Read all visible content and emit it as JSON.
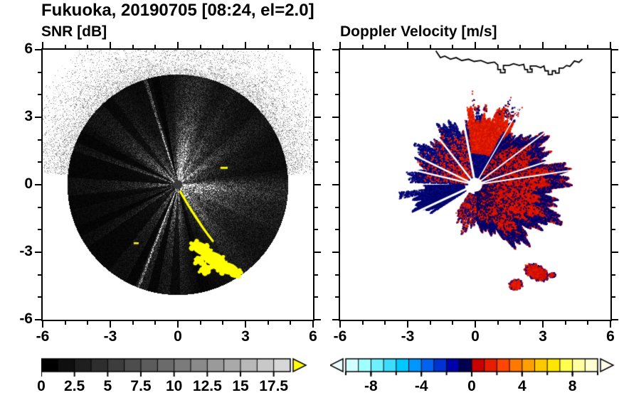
{
  "title": "Fukuoka, 20190705 [08:24, el=2.0]",
  "coastline": [
    [
      -1.75,
      5.95
    ],
    [
      -1.55,
      5.65
    ],
    [
      -1.35,
      5.72
    ],
    [
      -1.1,
      5.58
    ],
    [
      -0.85,
      5.65
    ],
    [
      -0.6,
      5.52
    ],
    [
      -0.3,
      5.58
    ],
    [
      -0.05,
      5.48
    ],
    [
      0.25,
      5.52
    ],
    [
      0.55,
      5.4
    ],
    [
      0.85,
      5.45
    ],
    [
      1.0,
      5.32
    ],
    [
      1.0,
      5.12
    ],
    [
      1.12,
      5.12
    ],
    [
      1.12,
      4.98
    ],
    [
      1.32,
      4.98
    ],
    [
      1.32,
      5.12
    ],
    [
      1.25,
      5.12
    ],
    [
      1.25,
      5.3
    ],
    [
      1.5,
      5.3
    ],
    [
      1.7,
      5.38
    ],
    [
      1.95,
      5.3
    ],
    [
      2.15,
      5.35
    ],
    [
      2.2,
      5.12
    ],
    [
      2.32,
      5.12
    ],
    [
      2.32,
      5.0
    ],
    [
      2.52,
      5.0
    ],
    [
      2.52,
      5.14
    ],
    [
      2.44,
      5.14
    ],
    [
      2.44,
      5.28
    ],
    [
      2.7,
      5.28
    ],
    [
      2.9,
      5.2
    ],
    [
      3.05,
      5.28
    ],
    [
      3.1,
      5.06
    ],
    [
      3.24,
      5.06
    ],
    [
      3.24,
      4.9
    ],
    [
      3.42,
      4.9
    ],
    [
      3.42,
      5.06
    ],
    [
      3.56,
      5.06
    ],
    [
      3.56,
      4.96
    ],
    [
      3.72,
      4.96
    ],
    [
      3.72,
      5.18
    ],
    [
      3.9,
      5.18
    ],
    [
      4.05,
      5.3
    ],
    [
      4.2,
      5.26
    ],
    [
      4.4,
      5.5
    ],
    [
      4.6,
      5.44
    ],
    [
      4.75,
      5.58
    ]
  ],
  "chart_data": [
    {
      "type": "heatmap",
      "title": "SNR [dB]",
      "xlabel": "",
      "ylabel": "",
      "xlim": [
        -6,
        6
      ],
      "ylim": [
        -6,
        6
      ],
      "xticks": [
        -6,
        -3,
        0,
        3,
        6
      ],
      "xtick_labels": [
        "-6",
        "-3",
        "0",
        "3",
        "6"
      ],
      "yticks": [
        6,
        3,
        0,
        -3,
        -6
      ],
      "ytick_labels": [
        "6",
        "3",
        "0",
        "-3",
        "-6"
      ],
      "minor_tick_step": 1,
      "radar": {
        "max_range": 4.9,
        "noise_seed": 20190705,
        "center_dot_radius": 0.2,
        "center_dot_color": "#383838",
        "sectors": [
          {
            "az": [
              148,
              232
            ],
            "f": 0.72
          },
          {
            "az": [
              100,
              104
            ],
            "f": 0.05
          },
          {
            "az": [
              127,
              133
            ],
            "f": 0.3
          },
          {
            "az": [
              151,
              157
            ],
            "f": 0.2
          },
          {
            "az": [
              162,
              176
            ],
            "f": 0.12
          },
          {
            "az": [
              186,
              193
            ],
            "f": 0.25
          },
          {
            "az": [
              203,
              208
            ],
            "f": 0.08
          },
          {
            "az": [
              215,
              231
            ],
            "f": 0.2
          },
          {
            "az": [
              242,
              247
            ],
            "f": 0.06
          },
          {
            "az": [
              254,
              259
            ],
            "f": 0.1
          },
          {
            "az": [
              266,
              271
            ],
            "f": 0.25
          },
          {
            "az": [
              282,
              287
            ],
            "f": 0.08
          },
          {
            "az": [
              58,
              92
            ],
            "f": 1.55
          },
          {
            "az": [
              10,
              42
            ],
            "f": 1.3
          },
          {
            "az": [
              335,
              368
            ],
            "f": 1.5
          },
          {
            "az": [
              296,
              326
            ],
            "f": 1.3
          },
          {
            "az": [
              106.5,
              108
            ],
            "f": 7
          },
          {
            "az": [
              284.5,
              286
            ],
            "f": 6
          },
          {
            "az": [
              248.5,
              249.5
            ],
            "f": 5
          }
        ],
        "outer_speckle": {
          "az": [
            5,
            175
          ],
          "r_max": 7.4,
          "falloff": 1.15,
          "density": 0.5
        },
        "clutter_color": "#ffff00",
        "clutter_line": [
          [
            0.1,
            -0.3
          ],
          [
            0.28,
            -0.6
          ],
          [
            0.45,
            -0.9
          ],
          [
            0.63,
            -1.18
          ],
          [
            0.84,
            -1.5
          ],
          [
            1.07,
            -1.85
          ],
          [
            1.32,
            -2.2
          ],
          [
            1.55,
            -2.5
          ]
        ],
        "clutter_blobs": [
          {
            "cx": 1.05,
            "cy": -2.85,
            "rx": 0.5,
            "ry": 0.26,
            "rot": -0.5
          },
          {
            "cx": 1.6,
            "cy": -3.3,
            "rx": 0.55,
            "ry": 0.3,
            "rot": -0.4
          },
          {
            "cx": 2.2,
            "cy": -3.72,
            "rx": 0.5,
            "ry": 0.26,
            "rot": -0.25
          },
          {
            "cx": 1.22,
            "cy": -3.75,
            "rx": 0.3,
            "ry": 0.17,
            "rot": 0.3
          },
          {
            "cx": 0.95,
            "cy": -3.4,
            "rx": 0.22,
            "ry": 0.13,
            "rot": 0
          },
          {
            "cx": 2.6,
            "cy": -3.9,
            "rx": 0.22,
            "ry": 0.14,
            "rot": -0.2
          }
        ],
        "clutter_dashes": [
          [
            2.05,
            0.75,
            0.32,
            0.09
          ],
          [
            -1.85,
            -2.6,
            0.22,
            0.08
          ]
        ],
        "coastline_color": "#ffffff"
      },
      "colorbar": {
        "min": 0,
        "max": 18.75,
        "segment_colors": [
          "#000000",
          "#0f0f0f",
          "#1f1f1f",
          "#2e2e2e",
          "#3d3d3d",
          "#4d4d4d",
          "#5c5c5c",
          "#6b6b6b",
          "#7b7b7b",
          "#8a8a8a",
          "#9a9a9a",
          "#a9a9a9",
          "#b8b8b8",
          "#c8c8c8",
          "#d7d7d7"
        ],
        "over_arrow_color": "#ffff00",
        "tick_values": [
          0,
          2.5,
          5,
          7.5,
          10,
          12.5,
          15,
          17.5
        ],
        "tick_labels": [
          "0",
          "2.5",
          "5",
          "7.5",
          "10",
          "12.5",
          "15",
          "17.5"
        ]
      }
    },
    {
      "type": "scatter",
      "title": "Doppler Velocity [m/s]",
      "xlabel": "",
      "ylabel": "",
      "xlim": [
        -6,
        6
      ],
      "ylim": [
        -6,
        6
      ],
      "xticks": [
        -6,
        -3,
        0,
        3,
        6
      ],
      "xtick_labels": [
        "-6",
        "-3",
        "0",
        "3",
        "6"
      ],
      "yticks": [
        6,
        3,
        0,
        -3,
        -6
      ],
      "ytick_labels": [],
      "minor_tick_step": 1,
      "radar": {
        "center_hole_radius": 0.31,
        "coastline_color": "#000000",
        "regions": [
          {
            "name": "nw-blue-fan",
            "az": [
              57,
              178
            ],
            "r": [
              0.33,
              3.25
            ],
            "n": 13000,
            "rExp": 1.0,
            "edgeRag": 0.3,
            "size": 2,
            "colors": [
              "#000060",
              "#00006e",
              "#0a0a82",
              "#141482"
            ],
            "nzSeed": 1.7
          },
          {
            "name": "nne-red-speckle",
            "az": [
              52,
              96
            ],
            "r": [
              1.4,
              3.65
            ],
            "n": 4000,
            "rExp": 0.8,
            "edgeRag": 0.28,
            "size": 2,
            "colors": [
              "#dc1400",
              "#c81400",
              "#f02800"
            ],
            "nzSeed": 2.9
          },
          {
            "name": "ne-blue-mix",
            "az": [
              30,
              62
            ],
            "r": [
              0.5,
              3.3
            ],
            "n": 2200,
            "rExp": 0.9,
            "edgeRag": 0.3,
            "size": 2,
            "colors": [
              "#000060",
              "#0a0a82"
            ],
            "nzSeed": 0.8
          },
          {
            "name": "nw-red-sparse",
            "az": [
              96,
              176
            ],
            "r": [
              0.4,
              3.0
            ],
            "n": 650,
            "rExp": 1.0,
            "edgeRag": 0.3,
            "size": 2,
            "colors": [
              "#dc1400",
              "#f02800"
            ],
            "nzSeed": 1.1
          },
          {
            "name": "n-outliers",
            "az": [
              58,
              92
            ],
            "r": [
              3.3,
              4.35
            ],
            "n": 260,
            "rExp": 1.4,
            "edgeRag": 0.4,
            "size": 2,
            "colors": [
              "#dc1400",
              "#000060"
            ],
            "nzSeed": 3.3
          },
          {
            "name": "w-blue-blob",
            "az": [
              181,
              213
            ],
            "r": [
              0.5,
              3.05
            ],
            "n": 6500,
            "rExp": 0.95,
            "edgeRag": 0.35,
            "size": 2,
            "colors": [
              "#000060",
              "#00006e",
              "#0a0a82"
            ],
            "nzSeed": 2.2
          },
          {
            "name": "w-blue-spike",
            "az": [
              185.5,
              190.5
            ],
            "r": [
              0.5,
              3.55
            ],
            "n": 520,
            "rExp": 1.0,
            "edgeRag": 0.08,
            "size": 2,
            "colors": [
              "#000060",
              "#0a0a82"
            ],
            "nzSeed": 0.4
          },
          {
            "name": "e-red-fan",
            "az": [
              272,
              415
            ],
            "r": [
              0.33,
              4.45
            ],
            "n": 36000,
            "rExp": 1.0,
            "edgeRag": 0.3,
            "size": 2,
            "colors": [
              "#dc1400",
              "#d21000",
              "#e61e00",
              "#c80a00"
            ],
            "nzSeed": 5.1,
            "rmax_profile": [
              [
                272,
                1.7
              ],
              [
                283,
                2.5
              ],
              [
                295,
                3.1
              ],
              [
                310,
                3.7
              ],
              [
                330,
                4.15
              ],
              [
                350,
                4.4
              ],
              [
                372,
                4.45
              ],
              [
                390,
                4.1
              ],
              [
                403,
                3.6
              ],
              [
                415,
                3.1
              ]
            ]
          },
          {
            "name": "e-fan-blue-fringe",
            "az": [
              272,
              415
            ],
            "r": [
              0.33,
              4.45
            ],
            "n": 2600,
            "rExp": 1.0,
            "edgeRag": 0.3,
            "size": 2,
            "colors": [
              "#000060",
              "#0a0a82"
            ],
            "nzSeed": 5.1,
            "fringe": 0.8,
            "rmax_profile": [
              [
                272,
                1.7
              ],
              [
                283,
                2.5
              ],
              [
                295,
                3.1
              ],
              [
                310,
                3.7
              ],
              [
                330,
                4.15
              ],
              [
                350,
                4.4
              ],
              [
                372,
                4.45
              ],
              [
                390,
                4.1
              ],
              [
                403,
                3.6
              ],
              [
                415,
                3.1
              ]
            ]
          },
          {
            "name": "e-fan-blue-mix",
            "az": [
              272,
              415
            ],
            "r": [
              0.33,
              4.2
            ],
            "n": 1300,
            "rExp": 1.0,
            "edgeRag": 0.32,
            "size": 2,
            "colors": [
              "#000060"
            ],
            "nzSeed": 5.1,
            "rmax_profile": [
              [
                272,
                1.6
              ],
              [
                283,
                2.4
              ],
              [
                295,
                3.0
              ],
              [
                310,
                3.6
              ],
              [
                330,
                4.0
              ],
              [
                350,
                4.3
              ],
              [
                372,
                4.3
              ],
              [
                390,
                4.0
              ],
              [
                403,
                3.5
              ],
              [
                415,
                3.0
              ]
            ]
          },
          {
            "name": "s-sparse",
            "az": [
              236,
              272
            ],
            "r": [
              0.45,
              2.3
            ],
            "n": 1400,
            "rExp": 0.95,
            "edgeRag": 0.4,
            "size": 2,
            "colors": [
              "#000060",
              "#dc1400",
              "#0a0a82",
              "#e61e00"
            ],
            "nzSeed": 4.4
          }
        ],
        "blobs": [
          {
            "name": "se-blob-large",
            "cx": 2.72,
            "cy": -3.9,
            "rx": 0.62,
            "ry": 0.36,
            "rot": -0.45,
            "n": 1700,
            "colors": [
              "#dc1400",
              "#e61e00",
              "#c80a00"
            ],
            "rim_colors": [
              "#000060",
              "#0a0a82",
              "#dc1400"
            ]
          },
          {
            "name": "se-blob-small",
            "cx": 1.8,
            "cy": -4.45,
            "rx": 0.33,
            "ry": 0.26,
            "rot": 0.2,
            "n": 520,
            "colors": [
              "#dc1400",
              "#e61e00"
            ],
            "rim_colors": [
              "#000060",
              "#0a0a82"
            ]
          },
          {
            "name": "se-blob-tiny",
            "cx": 3.42,
            "cy": -4.02,
            "rx": 0.17,
            "ry": 0.12,
            "rot": 0,
            "n": 100,
            "colors": [
              "#dc1400"
            ],
            "rim_colors": [
              "#000060"
            ]
          }
        ],
        "gap_lines": [
          {
            "az": 100.5,
            "w": 3
          },
          {
            "az": 128,
            "w": 2.5
          },
          {
            "az": 154,
            "w": 2.5
          },
          {
            "az": 166.5,
            "w": 2.5
          },
          {
            "az": 205,
            "w": 3
          },
          {
            "az": 8.5,
            "w": 2
          },
          {
            "az": 18,
            "w": 2
          },
          {
            "az": 37,
            "w": 2
          },
          {
            "az": 60,
            "w": 1.5
          }
        ]
      },
      "colorbar": {
        "min": -10,
        "max": 10,
        "segment_colors": [
          "#d2ffff",
          "#a0ffff",
          "#6ef0ff",
          "#3cdcff",
          "#00c8ff",
          "#0096ff",
          "#0064f0",
          "#0032d2",
          "#0000aa",
          "#000050",
          "#c80000",
          "#e61e00",
          "#ff4600",
          "#ff7800",
          "#ffa000",
          "#ffc800",
          "#ffe600",
          "#ffff50",
          "#ffffa0",
          "#ffffd2"
        ],
        "under_arrow_color": "#eaffff",
        "over_arrow_color": "#ffffea",
        "tick_values": [
          -8,
          -4,
          0,
          4,
          8
        ],
        "tick_labels": [
          "-8",
          "-4",
          "0",
          "4",
          "8"
        ],
        "minor_tick_step": 2
      }
    }
  ]
}
